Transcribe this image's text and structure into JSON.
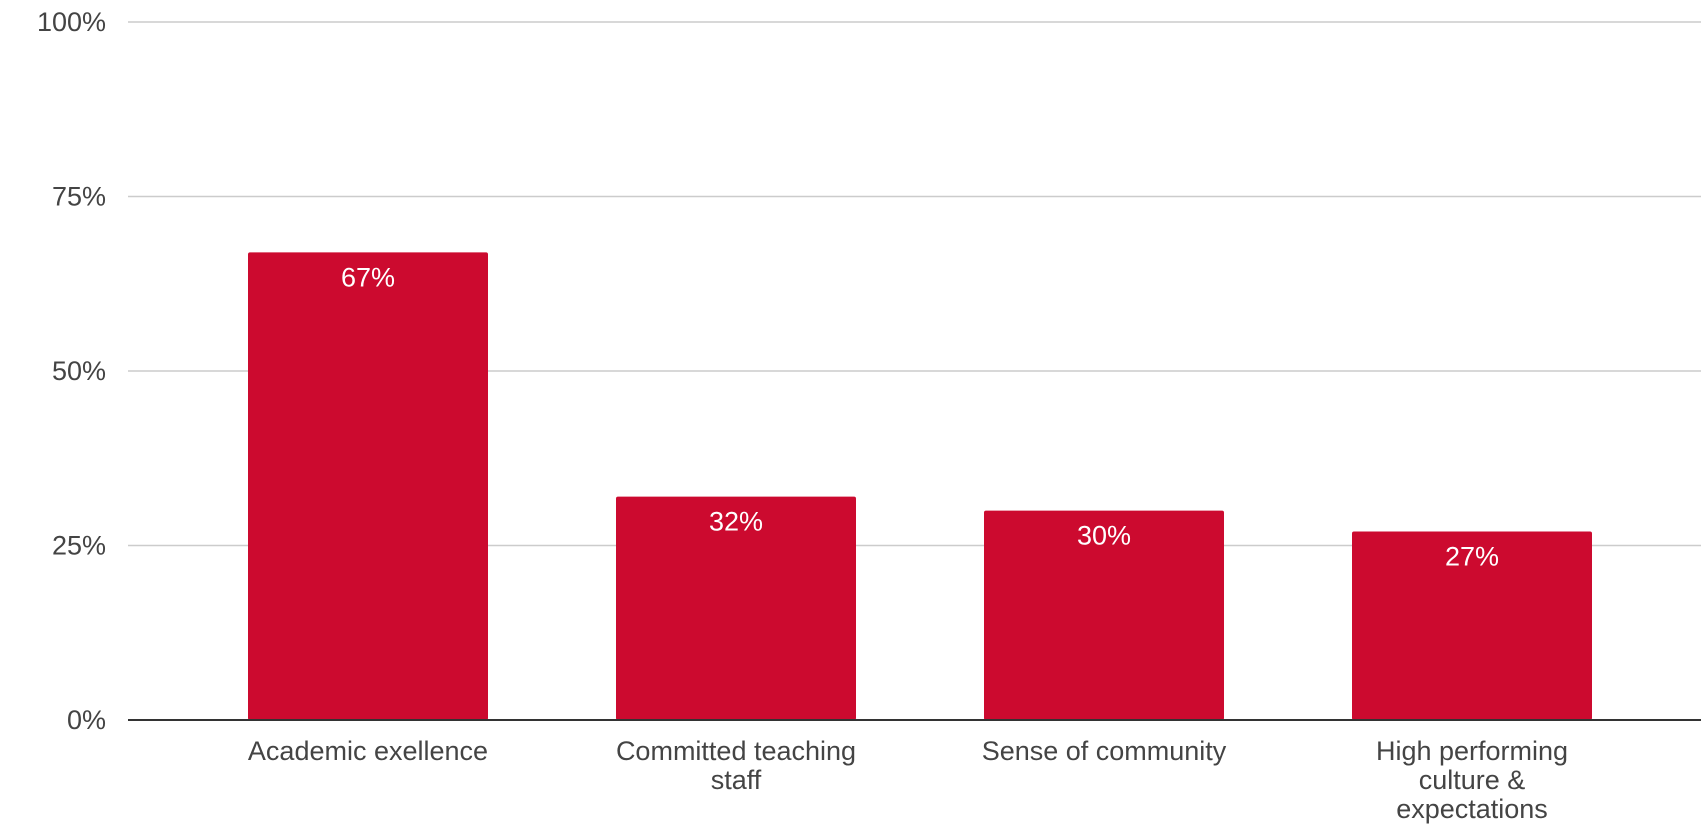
{
  "chart_data": {
    "type": "bar",
    "categories": [
      [
        "Academic exellence"
      ],
      [
        "Committed teaching",
        "staff"
      ],
      [
        "Sense of community"
      ],
      [
        "High performing",
        "culture &",
        "expectations"
      ]
    ],
    "values": [
      67,
      32,
      30,
      27
    ],
    "data_labels": [
      "67%",
      "32%",
      "30%",
      "27%"
    ],
    "title": "",
    "xlabel": "",
    "ylabel": "",
    "ylim": [
      0,
      100
    ],
    "y_ticks": [
      0,
      25,
      50,
      75,
      100
    ],
    "y_tick_labels": [
      "0%",
      "25%",
      "50%",
      "75%",
      "100%"
    ],
    "grid": true,
    "legend": "none",
    "colors": {
      "bar": "#cc0a2f",
      "grid": "#cccccc",
      "axis": "#333333",
      "tick_text": "#444444",
      "data_label_text": "#ffffff"
    }
  }
}
